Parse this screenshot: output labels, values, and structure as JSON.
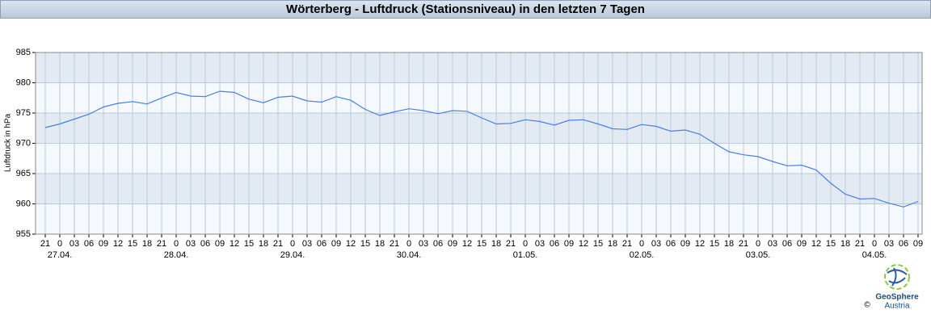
{
  "chart_data": {
    "type": "line",
    "title": "Wörterberg - Luftdruck (Stationsniveau) in den letzten 7 Tagen",
    "y_label": "Luftdruck in hPa",
    "categories": [
      "21",
      "0",
      "03",
      "06",
      "09",
      "12",
      "15",
      "18",
      "21",
      "0",
      "03",
      "06",
      "09",
      "12",
      "15",
      "18",
      "21",
      "0",
      "03",
      "06",
      "09",
      "12",
      "15",
      "18",
      "21",
      "0",
      "03",
      "06",
      "09",
      "12",
      "15",
      "18",
      "21",
      "0",
      "03",
      "06",
      "09",
      "12",
      "15",
      "18",
      "21",
      "0",
      "03",
      "06",
      "09",
      "12",
      "15",
      "18",
      "21",
      "0",
      "03",
      "06",
      "09",
      "12",
      "15",
      "18",
      "21",
      "0",
      "03",
      "06",
      "09"
    ],
    "dates": [
      "27.04.",
      "28.04.",
      "29.04.",
      "30.04.",
      "01.05.",
      "02.05.",
      "03.05.",
      "04.05."
    ],
    "values": [
      972.6,
      973.2,
      974.0,
      974.8,
      976.0,
      976.6,
      976.9,
      976.5,
      977.5,
      978.4,
      977.8,
      977.7,
      978.6,
      978.4,
      977.3,
      976.7,
      977.6,
      977.8,
      977.0,
      976.8,
      977.7,
      977.1,
      975.6,
      974.6,
      975.2,
      975.7,
      975.4,
      974.9,
      975.4,
      975.3,
      974.2,
      973.2,
      973.3,
      973.9,
      973.6,
      973.0,
      973.8,
      973.9,
      973.2,
      972.4,
      972.3,
      973.1,
      972.8,
      972.0,
      972.2,
      971.5,
      970.0,
      968.6,
      968.1,
      967.8,
      967.0,
      966.3,
      966.4,
      965.6,
      963.4,
      961.6,
      960.8,
      960.9,
      960.1,
      959.5,
      960.4
    ],
    "color": "#4a7fe0",
    "ylim": [
      955,
      985
    ],
    "yticks": [
      955,
      960,
      965,
      970,
      975,
      980,
      985
    ],
    "grid": true,
    "logo": {
      "name": "GeoSphere",
      "sub": "Austria",
      "copyright": "©"
    }
  }
}
